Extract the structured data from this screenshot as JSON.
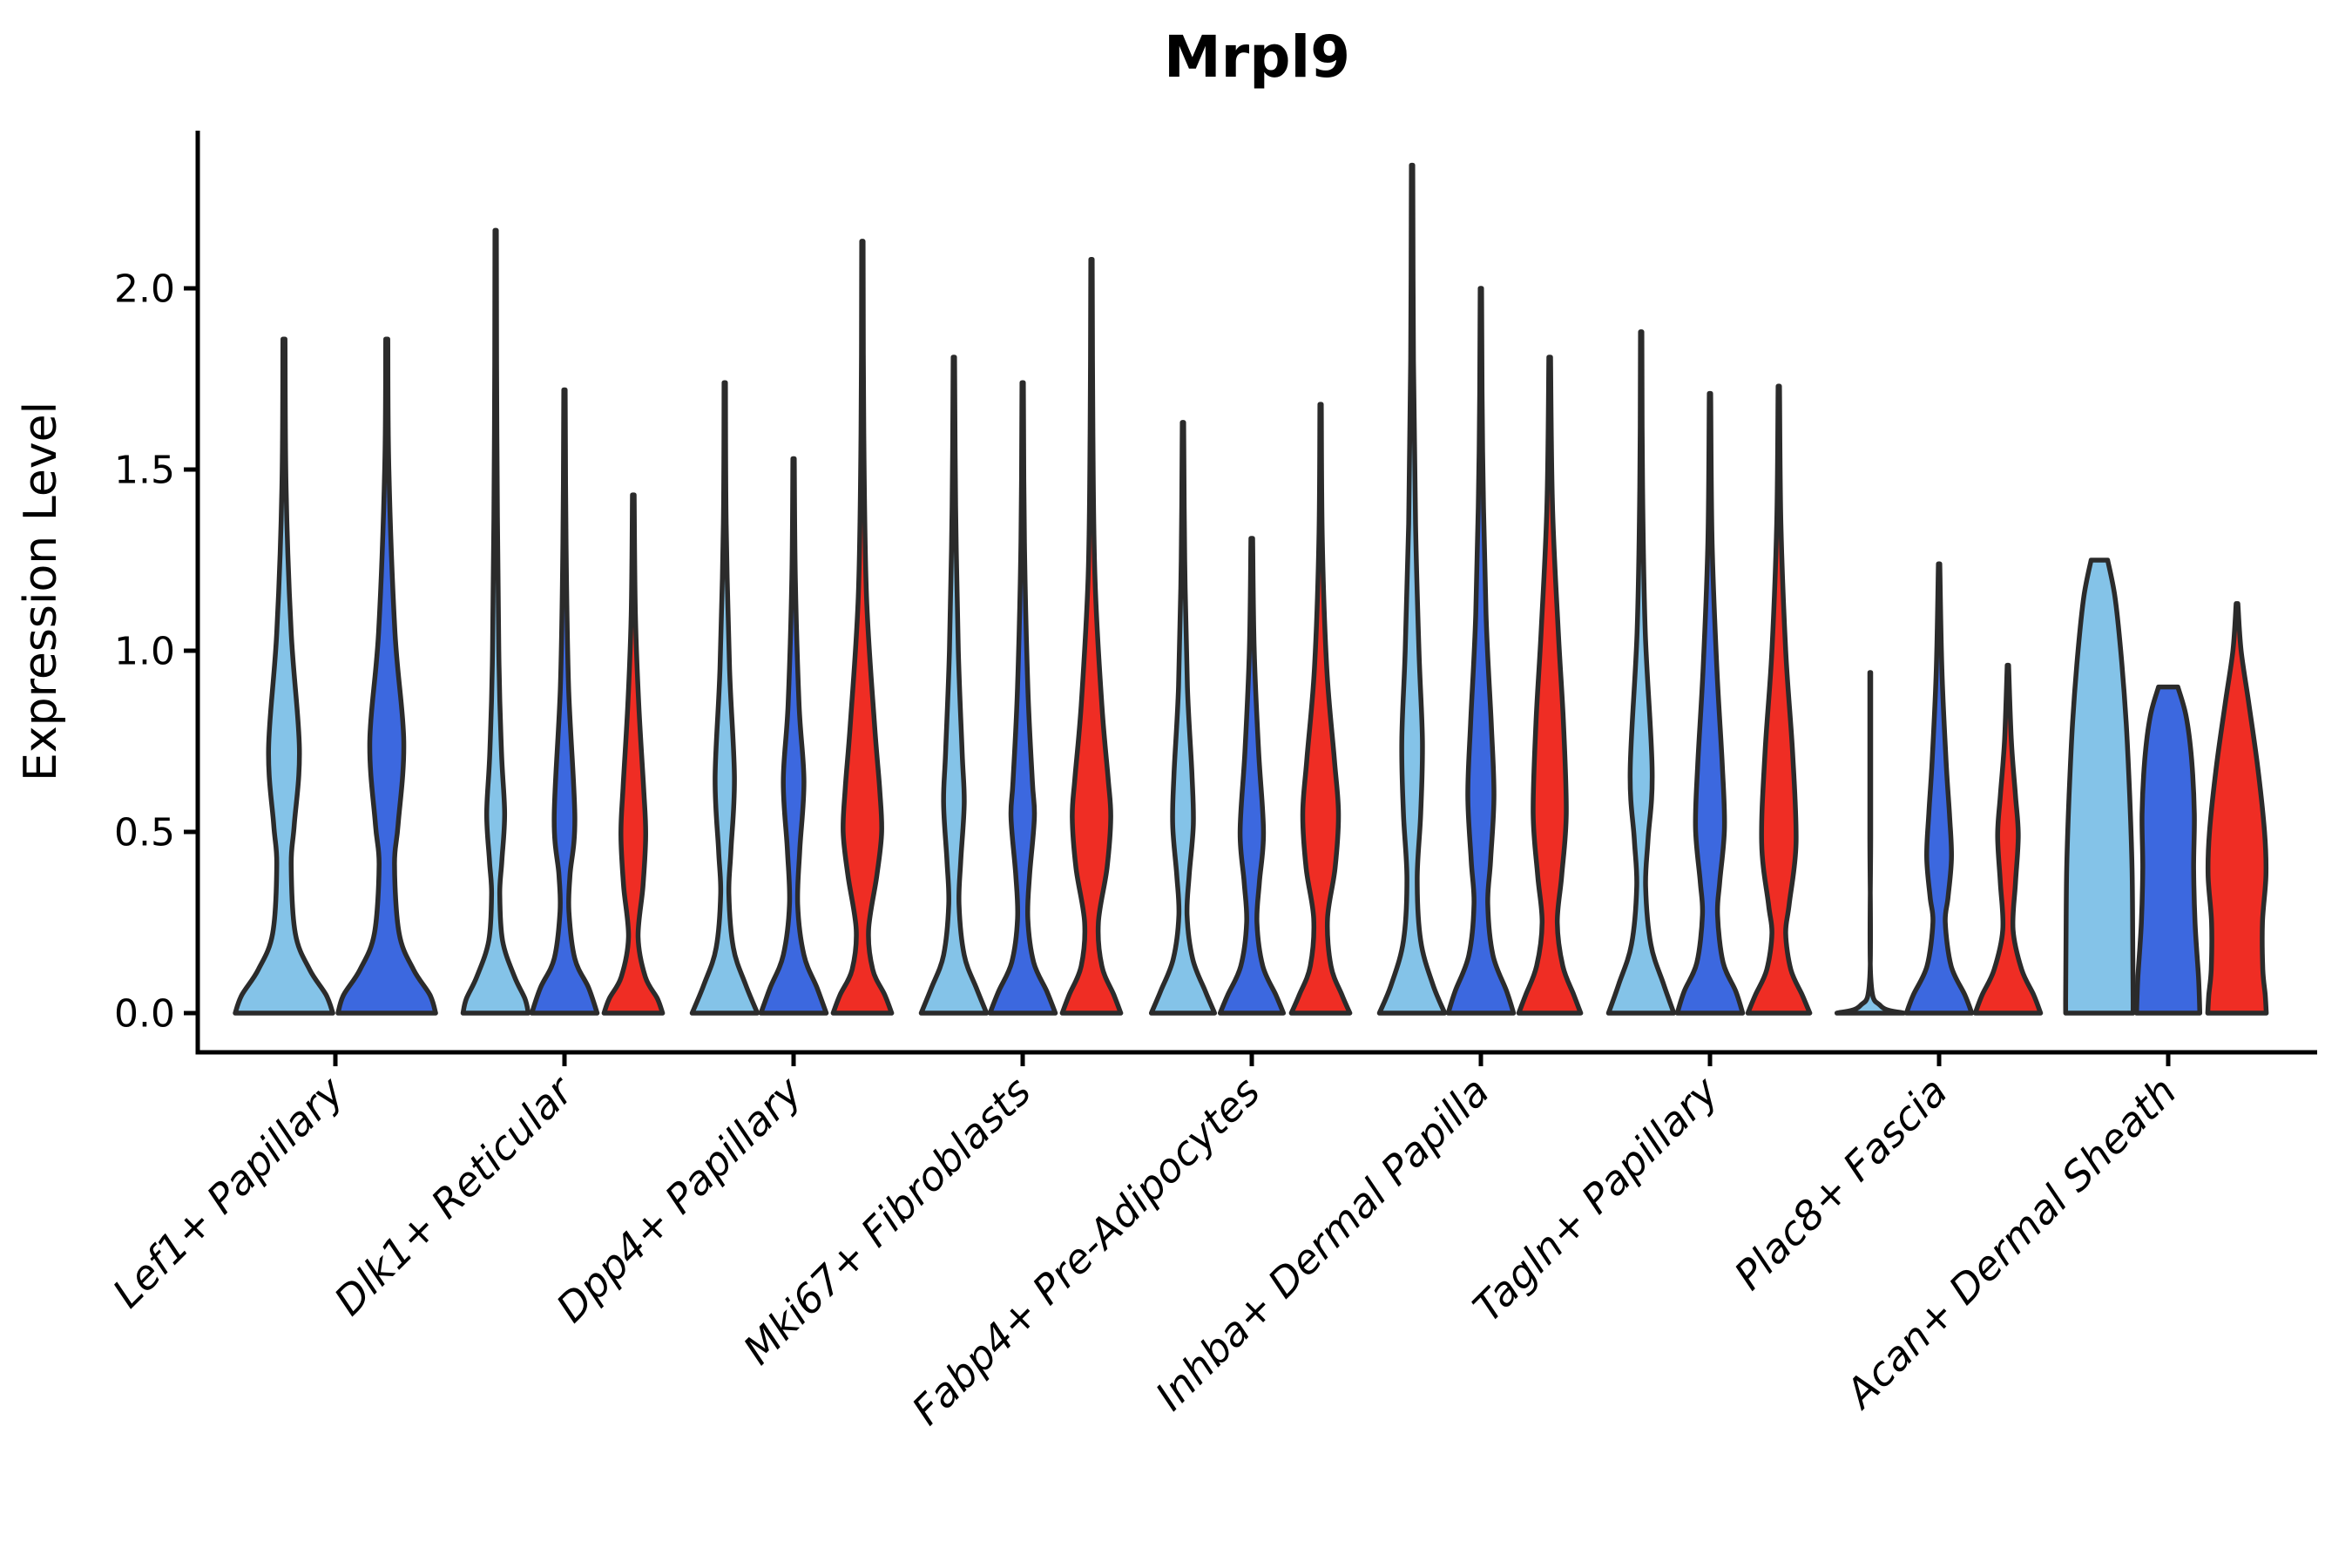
{
  "chart_data": {
    "type": "violin",
    "title": "Mrpl9",
    "ylabel": "Expression Level",
    "xlabel": "",
    "ylim": [
      -0.11,
      2.44
    ],
    "grid": false,
    "legend": "none",
    "yticks": [
      "0.0",
      "0.5",
      "1.0",
      "1.5",
      "2.0"
    ],
    "ytick_values": [
      0.0,
      0.5,
      1.0,
      1.5,
      2.0
    ],
    "categories": [
      "Lef1+ Papillary",
      "Dlk1+ Reticular",
      "Dpp4+ Papillary",
      "Mki67+ Fibroblasts",
      "Fabp4+ Pre-Adipocytes",
      "Inhba+ Dermal Papilla",
      "Tagln+ Papillary",
      "Plac8+ Fascia",
      "Acan+ Dermal Sheath"
    ],
    "hues": [
      "light-blue",
      "dark-blue",
      "red"
    ],
    "hue_colors": {
      "light-blue": "#84C3E8",
      "dark-blue": "#3C68DF",
      "red": "#EF2D24"
    },
    "edge_color": "#2B2B2B",
    "violins": [
      {
        "category": 0,
        "hue": "light-blue",
        "max": 1.86,
        "profile": [
          [
            1.86,
            0.02
          ],
          [
            1.45,
            0.04
          ],
          [
            1.05,
            0.14
          ],
          [
            0.73,
            0.3
          ],
          [
            0.52,
            0.2
          ],
          [
            0.41,
            0.14
          ],
          [
            0.22,
            0.22
          ],
          [
            0.12,
            0.5
          ],
          [
            0.05,
            0.82
          ],
          [
            0,
            0.95
          ]
        ]
      },
      {
        "category": 0,
        "hue": "dark-blue",
        "max": 1.86,
        "profile": [
          [
            1.86,
            0.02
          ],
          [
            1.5,
            0.04
          ],
          [
            1.05,
            0.16
          ],
          [
            0.75,
            0.33
          ],
          [
            0.52,
            0.22
          ],
          [
            0.41,
            0.15
          ],
          [
            0.22,
            0.24
          ],
          [
            0.12,
            0.52
          ],
          [
            0.05,
            0.84
          ],
          [
            0,
            0.95
          ]
        ]
      },
      {
        "category": 1,
        "hue": "light-blue",
        "max": 2.16,
        "profile": [
          [
            2.16,
            0.02
          ],
          [
            1.6,
            0.035
          ],
          [
            1.0,
            0.09
          ],
          [
            0.72,
            0.17
          ],
          [
            0.55,
            0.26
          ],
          [
            0.42,
            0.18
          ],
          [
            0.33,
            0.12
          ],
          [
            0.2,
            0.2
          ],
          [
            0.1,
            0.55
          ],
          [
            0.04,
            0.85
          ],
          [
            0,
            0.95
          ]
        ]
      },
      {
        "category": 1,
        "hue": "dark-blue",
        "max": 1.72,
        "profile": [
          [
            1.72,
            0.02
          ],
          [
            1.3,
            0.045
          ],
          [
            0.9,
            0.12
          ],
          [
            0.54,
            0.3
          ],
          [
            0.38,
            0.16
          ],
          [
            0.28,
            0.13
          ],
          [
            0.15,
            0.3
          ],
          [
            0.07,
            0.7
          ],
          [
            0,
            0.95
          ]
        ]
      },
      {
        "category": 1,
        "hue": "red",
        "max": 1.43,
        "profile": [
          [
            1.43,
            0.025
          ],
          [
            1.1,
            0.06
          ],
          [
            0.85,
            0.16
          ],
          [
            0.62,
            0.3
          ],
          [
            0.49,
            0.36
          ],
          [
            0.35,
            0.28
          ],
          [
            0.21,
            0.14
          ],
          [
            0.1,
            0.35
          ],
          [
            0.04,
            0.7
          ],
          [
            0,
            0.85
          ]
        ]
      },
      {
        "category": 2,
        "hue": "light-blue",
        "max": 1.74,
        "profile": [
          [
            1.74,
            0.02
          ],
          [
            1.35,
            0.04
          ],
          [
            0.95,
            0.14
          ],
          [
            0.65,
            0.28
          ],
          [
            0.45,
            0.18
          ],
          [
            0.33,
            0.12
          ],
          [
            0.18,
            0.25
          ],
          [
            0.08,
            0.6
          ],
          [
            0,
            0.95
          ]
        ]
      },
      {
        "category": 2,
        "hue": "dark-blue",
        "max": 1.53,
        "profile": [
          [
            1.53,
            0.02
          ],
          [
            1.2,
            0.05
          ],
          [
            0.85,
            0.16
          ],
          [
            0.64,
            0.3
          ],
          [
            0.45,
            0.18
          ],
          [
            0.3,
            0.12
          ],
          [
            0.16,
            0.3
          ],
          [
            0.07,
            0.68
          ],
          [
            0,
            0.95
          ]
        ]
      },
      {
        "category": 2,
        "hue": "red",
        "max": 2.13,
        "profile": [
          [
            2.13,
            0.02
          ],
          [
            1.6,
            0.04
          ],
          [
            1.15,
            0.12
          ],
          [
            0.8,
            0.35
          ],
          [
            0.62,
            0.5
          ],
          [
            0.5,
            0.56
          ],
          [
            0.38,
            0.42
          ],
          [
            0.23,
            0.18
          ],
          [
            0.12,
            0.3
          ],
          [
            0.05,
            0.65
          ],
          [
            0,
            0.85
          ]
        ]
      },
      {
        "category": 3,
        "hue": "light-blue",
        "max": 1.81,
        "profile": [
          [
            1.81,
            0.02
          ],
          [
            1.4,
            0.05
          ],
          [
            1.0,
            0.13
          ],
          [
            0.72,
            0.24
          ],
          [
            0.58,
            0.3
          ],
          [
            0.42,
            0.2
          ],
          [
            0.3,
            0.15
          ],
          [
            0.16,
            0.3
          ],
          [
            0.07,
            0.65
          ],
          [
            0,
            0.95
          ]
        ]
      },
      {
        "category": 3,
        "hue": "dark-blue",
        "max": 1.74,
        "profile": [
          [
            1.74,
            0.02
          ],
          [
            1.3,
            0.05
          ],
          [
            0.9,
            0.15
          ],
          [
            0.64,
            0.28
          ],
          [
            0.54,
            0.34
          ],
          [
            0.38,
            0.2
          ],
          [
            0.26,
            0.15
          ],
          [
            0.14,
            0.32
          ],
          [
            0.06,
            0.7
          ],
          [
            0,
            0.95
          ]
        ]
      },
      {
        "category": 3,
        "hue": "red",
        "max": 2.08,
        "profile": [
          [
            2.08,
            0.02
          ],
          [
            1.6,
            0.04
          ],
          [
            1.2,
            0.1
          ],
          [
            0.85,
            0.3
          ],
          [
            0.65,
            0.48
          ],
          [
            0.54,
            0.56
          ],
          [
            0.4,
            0.45
          ],
          [
            0.25,
            0.2
          ],
          [
            0.13,
            0.3
          ],
          [
            0.05,
            0.65
          ],
          [
            0,
            0.85
          ]
        ]
      },
      {
        "category": 4,
        "hue": "light-blue",
        "max": 1.63,
        "profile": [
          [
            1.63,
            0.02
          ],
          [
            1.25,
            0.05
          ],
          [
            0.9,
            0.13
          ],
          [
            0.66,
            0.26
          ],
          [
            0.52,
            0.3
          ],
          [
            0.38,
            0.18
          ],
          [
            0.27,
            0.12
          ],
          [
            0.15,
            0.28
          ],
          [
            0.06,
            0.65
          ],
          [
            0,
            0.92
          ]
        ]
      },
      {
        "category": 4,
        "hue": "dark-blue",
        "max": 1.31,
        "profile": [
          [
            1.31,
            0.025
          ],
          [
            1.0,
            0.07
          ],
          [
            0.72,
            0.2
          ],
          [
            0.5,
            0.34
          ],
          [
            0.36,
            0.22
          ],
          [
            0.25,
            0.15
          ],
          [
            0.13,
            0.32
          ],
          [
            0.05,
            0.7
          ],
          [
            0,
            0.92
          ]
        ]
      },
      {
        "category": 4,
        "hue": "red",
        "max": 1.68,
        "profile": [
          [
            1.68,
            0.02
          ],
          [
            1.3,
            0.05
          ],
          [
            0.95,
            0.18
          ],
          [
            0.7,
            0.4
          ],
          [
            0.55,
            0.52
          ],
          [
            0.4,
            0.42
          ],
          [
            0.26,
            0.2
          ],
          [
            0.13,
            0.3
          ],
          [
            0.05,
            0.62
          ],
          [
            0,
            0.85
          ]
        ]
      },
      {
        "category": 5,
        "hue": "light-blue",
        "max": 2.34,
        "profile": [
          [
            2.34,
            0.02
          ],
          [
            1.8,
            0.04
          ],
          [
            1.35,
            0.1
          ],
          [
            1.0,
            0.2
          ],
          [
            0.75,
            0.3
          ],
          [
            0.55,
            0.25
          ],
          [
            0.37,
            0.15
          ],
          [
            0.2,
            0.25
          ],
          [
            0.08,
            0.6
          ],
          [
            0,
            0.95
          ]
        ]
      },
      {
        "category": 5,
        "hue": "dark-blue",
        "max": 2.0,
        "profile": [
          [
            2.0,
            0.02
          ],
          [
            1.55,
            0.05
          ],
          [
            1.1,
            0.15
          ],
          [
            0.8,
            0.3
          ],
          [
            0.6,
            0.38
          ],
          [
            0.42,
            0.28
          ],
          [
            0.3,
            0.2
          ],
          [
            0.16,
            0.35
          ],
          [
            0.06,
            0.75
          ],
          [
            0,
            0.95
          ]
        ]
      },
      {
        "category": 5,
        "hue": "red",
        "max": 1.81,
        "profile": [
          [
            1.81,
            0.025
          ],
          [
            1.4,
            0.08
          ],
          [
            1.05,
            0.25
          ],
          [
            0.8,
            0.4
          ],
          [
            0.55,
            0.48
          ],
          [
            0.38,
            0.35
          ],
          [
            0.25,
            0.22
          ],
          [
            0.13,
            0.38
          ],
          [
            0.05,
            0.7
          ],
          [
            0,
            0.9
          ]
        ]
      },
      {
        "category": 6,
        "hue": "light-blue",
        "max": 1.88,
        "profile": [
          [
            1.88,
            0.02
          ],
          [
            1.45,
            0.04
          ],
          [
            1.05,
            0.12
          ],
          [
            0.67,
            0.32
          ],
          [
            0.48,
            0.2
          ],
          [
            0.35,
            0.13
          ],
          [
            0.19,
            0.28
          ],
          [
            0.08,
            0.65
          ],
          [
            0,
            0.95
          ]
        ]
      },
      {
        "category": 6,
        "hue": "dark-blue",
        "max": 1.71,
        "profile": [
          [
            1.71,
            0.02
          ],
          [
            1.3,
            0.06
          ],
          [
            0.95,
            0.2
          ],
          [
            0.68,
            0.36
          ],
          [
            0.51,
            0.42
          ],
          [
            0.36,
            0.28
          ],
          [
            0.27,
            0.22
          ],
          [
            0.14,
            0.38
          ],
          [
            0.06,
            0.75
          ],
          [
            0,
            0.95
          ]
        ]
      },
      {
        "category": 6,
        "hue": "red",
        "max": 1.73,
        "profile": [
          [
            1.73,
            0.02
          ],
          [
            1.35,
            0.06
          ],
          [
            1.0,
            0.2
          ],
          [
            0.72,
            0.4
          ],
          [
            0.47,
            0.5
          ],
          [
            0.3,
            0.3
          ],
          [
            0.22,
            0.2
          ],
          [
            0.12,
            0.35
          ],
          [
            0.05,
            0.68
          ],
          [
            0,
            0.9
          ]
        ]
      },
      {
        "category": 7,
        "hue": "light-blue",
        "max": 0.94,
        "profile": [
          [
            0.94,
            0.012
          ],
          [
            0.5,
            0.012
          ],
          [
            0.1,
            0.012
          ],
          [
            0.02,
            0.3
          ],
          [
            0,
            0.97
          ]
        ]
      },
      {
        "category": 7,
        "hue": "dark-blue",
        "max": 1.24,
        "profile": [
          [
            1.24,
            0.02
          ],
          [
            0.95,
            0.08
          ],
          [
            0.7,
            0.2
          ],
          [
            0.55,
            0.3
          ],
          [
            0.43,
            0.36
          ],
          [
            0.32,
            0.26
          ],
          [
            0.25,
            0.18
          ],
          [
            0.13,
            0.35
          ],
          [
            0.05,
            0.75
          ],
          [
            0,
            0.95
          ]
        ]
      },
      {
        "category": 7,
        "hue": "red",
        "max": 0.96,
        "profile": [
          [
            0.96,
            0.02
          ],
          [
            0.75,
            0.1
          ],
          [
            0.6,
            0.22
          ],
          [
            0.49,
            0.3
          ],
          [
            0.36,
            0.22
          ],
          [
            0.23,
            0.15
          ],
          [
            0.12,
            0.4
          ],
          [
            0.05,
            0.75
          ],
          [
            0,
            0.95
          ]
        ]
      },
      {
        "category": 8,
        "hue": "light-blue",
        "max": 1.25,
        "flat_top": true,
        "profile": [
          [
            1.25,
            0.24
          ],
          [
            1.15,
            0.45
          ],
          [
            1.0,
            0.62
          ],
          [
            0.8,
            0.78
          ],
          [
            0.6,
            0.88
          ],
          [
            0.4,
            0.95
          ],
          [
            0.2,
            0.97
          ],
          [
            0.05,
            0.98
          ],
          [
            0,
            0.98
          ]
        ]
      },
      {
        "category": 8,
        "hue": "dark-blue",
        "max": 0.9,
        "flat_top": true,
        "profile": [
          [
            0.9,
            0.28
          ],
          [
            0.82,
            0.52
          ],
          [
            0.7,
            0.68
          ],
          [
            0.55,
            0.76
          ],
          [
            0.4,
            0.74
          ],
          [
            0.25,
            0.78
          ],
          [
            0.1,
            0.88
          ],
          [
            0,
            0.92
          ]
        ]
      },
      {
        "category": 8,
        "hue": "red",
        "max": 1.13,
        "profile": [
          [
            1.13,
            0.025
          ],
          [
            1.0,
            0.12
          ],
          [
            0.85,
            0.35
          ],
          [
            0.68,
            0.6
          ],
          [
            0.5,
            0.8
          ],
          [
            0.38,
            0.84
          ],
          [
            0.25,
            0.74
          ],
          [
            0.12,
            0.75
          ],
          [
            0.05,
            0.82
          ],
          [
            0,
            0.85
          ]
        ]
      }
    ]
  }
}
